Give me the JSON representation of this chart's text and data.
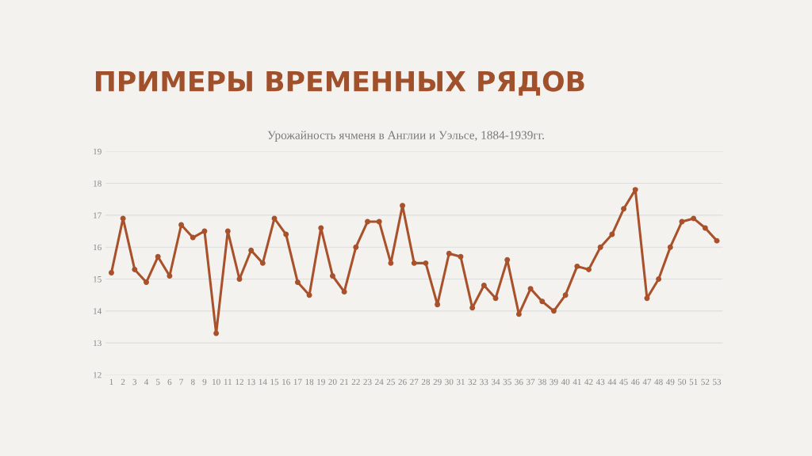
{
  "chart_data": {
    "type": "line",
    "title": "ПРИМЕРЫ ВРЕМЕННЫХ РЯДОВ",
    "subtitle": "Урожайность ячменя в Англии и Уэльсе, 1884-1939гг.",
    "categories": [
      "1",
      "2",
      "3",
      "4",
      "5",
      "6",
      "7",
      "8",
      "9",
      "10",
      "11",
      "12",
      "13",
      "14",
      "15",
      "16",
      "17",
      "18",
      "19",
      "20",
      "21",
      "22",
      "23",
      "24",
      "25",
      "26",
      "27",
      "28",
      "29",
      "30",
      "31",
      "32",
      "33",
      "34",
      "35",
      "36",
      "37",
      "38",
      "39",
      "40",
      "41",
      "42",
      "43",
      "44",
      "45",
      "46",
      "47",
      "48",
      "49",
      "50",
      "51",
      "52",
      "53"
    ],
    "series": [
      {
        "color": "#a9512b",
        "values": [
          15.2,
          16.9,
          15.3,
          14.9,
          15.7,
          15.1,
          16.7,
          16.3,
          16.5,
          13.3,
          16.5,
          15.0,
          15.9,
          15.5,
          16.9,
          16.4,
          14.9,
          14.5,
          16.6,
          15.1,
          14.6,
          16.0,
          16.8,
          16.8,
          15.5,
          17.3,
          15.5,
          15.5,
          14.2,
          15.8,
          15.7,
          14.1,
          14.8,
          14.4,
          15.6,
          13.9,
          14.7,
          14.3,
          14.0,
          14.5,
          15.4,
          15.3,
          16.0,
          16.4,
          17.2,
          17.8,
          14.4,
          15.0,
          16.0,
          16.8,
          16.9,
          16.6,
          16.2
        ]
      }
    ],
    "ylim": [
      12,
      19
    ],
    "yticks": [
      12,
      13,
      14,
      15,
      16,
      17,
      18,
      19
    ],
    "grid": "y",
    "marker": "circle",
    "line_style": "solid",
    "legend": false
  }
}
